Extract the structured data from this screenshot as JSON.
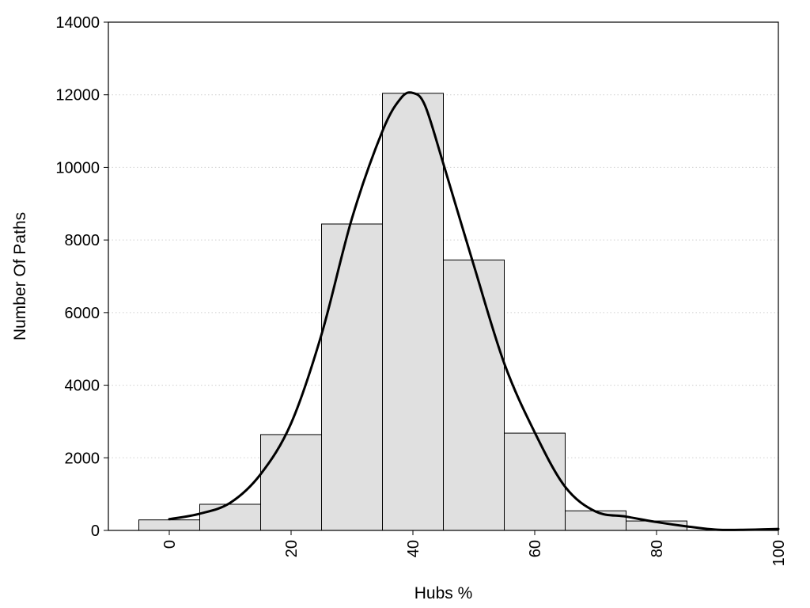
{
  "chart_data": {
    "type": "bar",
    "title": "",
    "xlabel": "Hubs %",
    "ylabel": "Number Of Paths",
    "xlim": [
      -10,
      100
    ],
    "ylim": [
      0,
      14000
    ],
    "bin_width": 10,
    "x_ticks": [
      0,
      20,
      40,
      60,
      80,
      100
    ],
    "y_ticks": [
      0,
      2000,
      4000,
      6000,
      8000,
      10000,
      12000,
      14000
    ],
    "grid": true,
    "legend": "none",
    "bars": [
      {
        "center": 0,
        "value": 290
      },
      {
        "center": 10,
        "value": 720
      },
      {
        "center": 20,
        "value": 2640
      },
      {
        "center": 30,
        "value": 8440
      },
      {
        "center": 40,
        "value": 12040
      },
      {
        "center": 50,
        "value": 7450
      },
      {
        "center": 60,
        "value": 2680
      },
      {
        "center": 70,
        "value": 540
      },
      {
        "center": 80,
        "value": 260
      }
    ],
    "density_curve": {
      "x": [
        0,
        5,
        10,
        15,
        20,
        25,
        30,
        35,
        38,
        40,
        42,
        45,
        50,
        55,
        60,
        65,
        70,
        75,
        80,
        85,
        90,
        95,
        100
      ],
      "y": [
        310,
        460,
        760,
        1550,
        2950,
        5400,
        8600,
        11000,
        11900,
        12050,
        11700,
        10100,
        7300,
        4600,
        2700,
        1200,
        520,
        380,
        230,
        110,
        20,
        20,
        40
      ]
    },
    "colors": {
      "bar_fill": "#e0e0e0",
      "bar_stroke": "#000000",
      "curve": "#000000",
      "grid": "#cfcfcf"
    }
  }
}
